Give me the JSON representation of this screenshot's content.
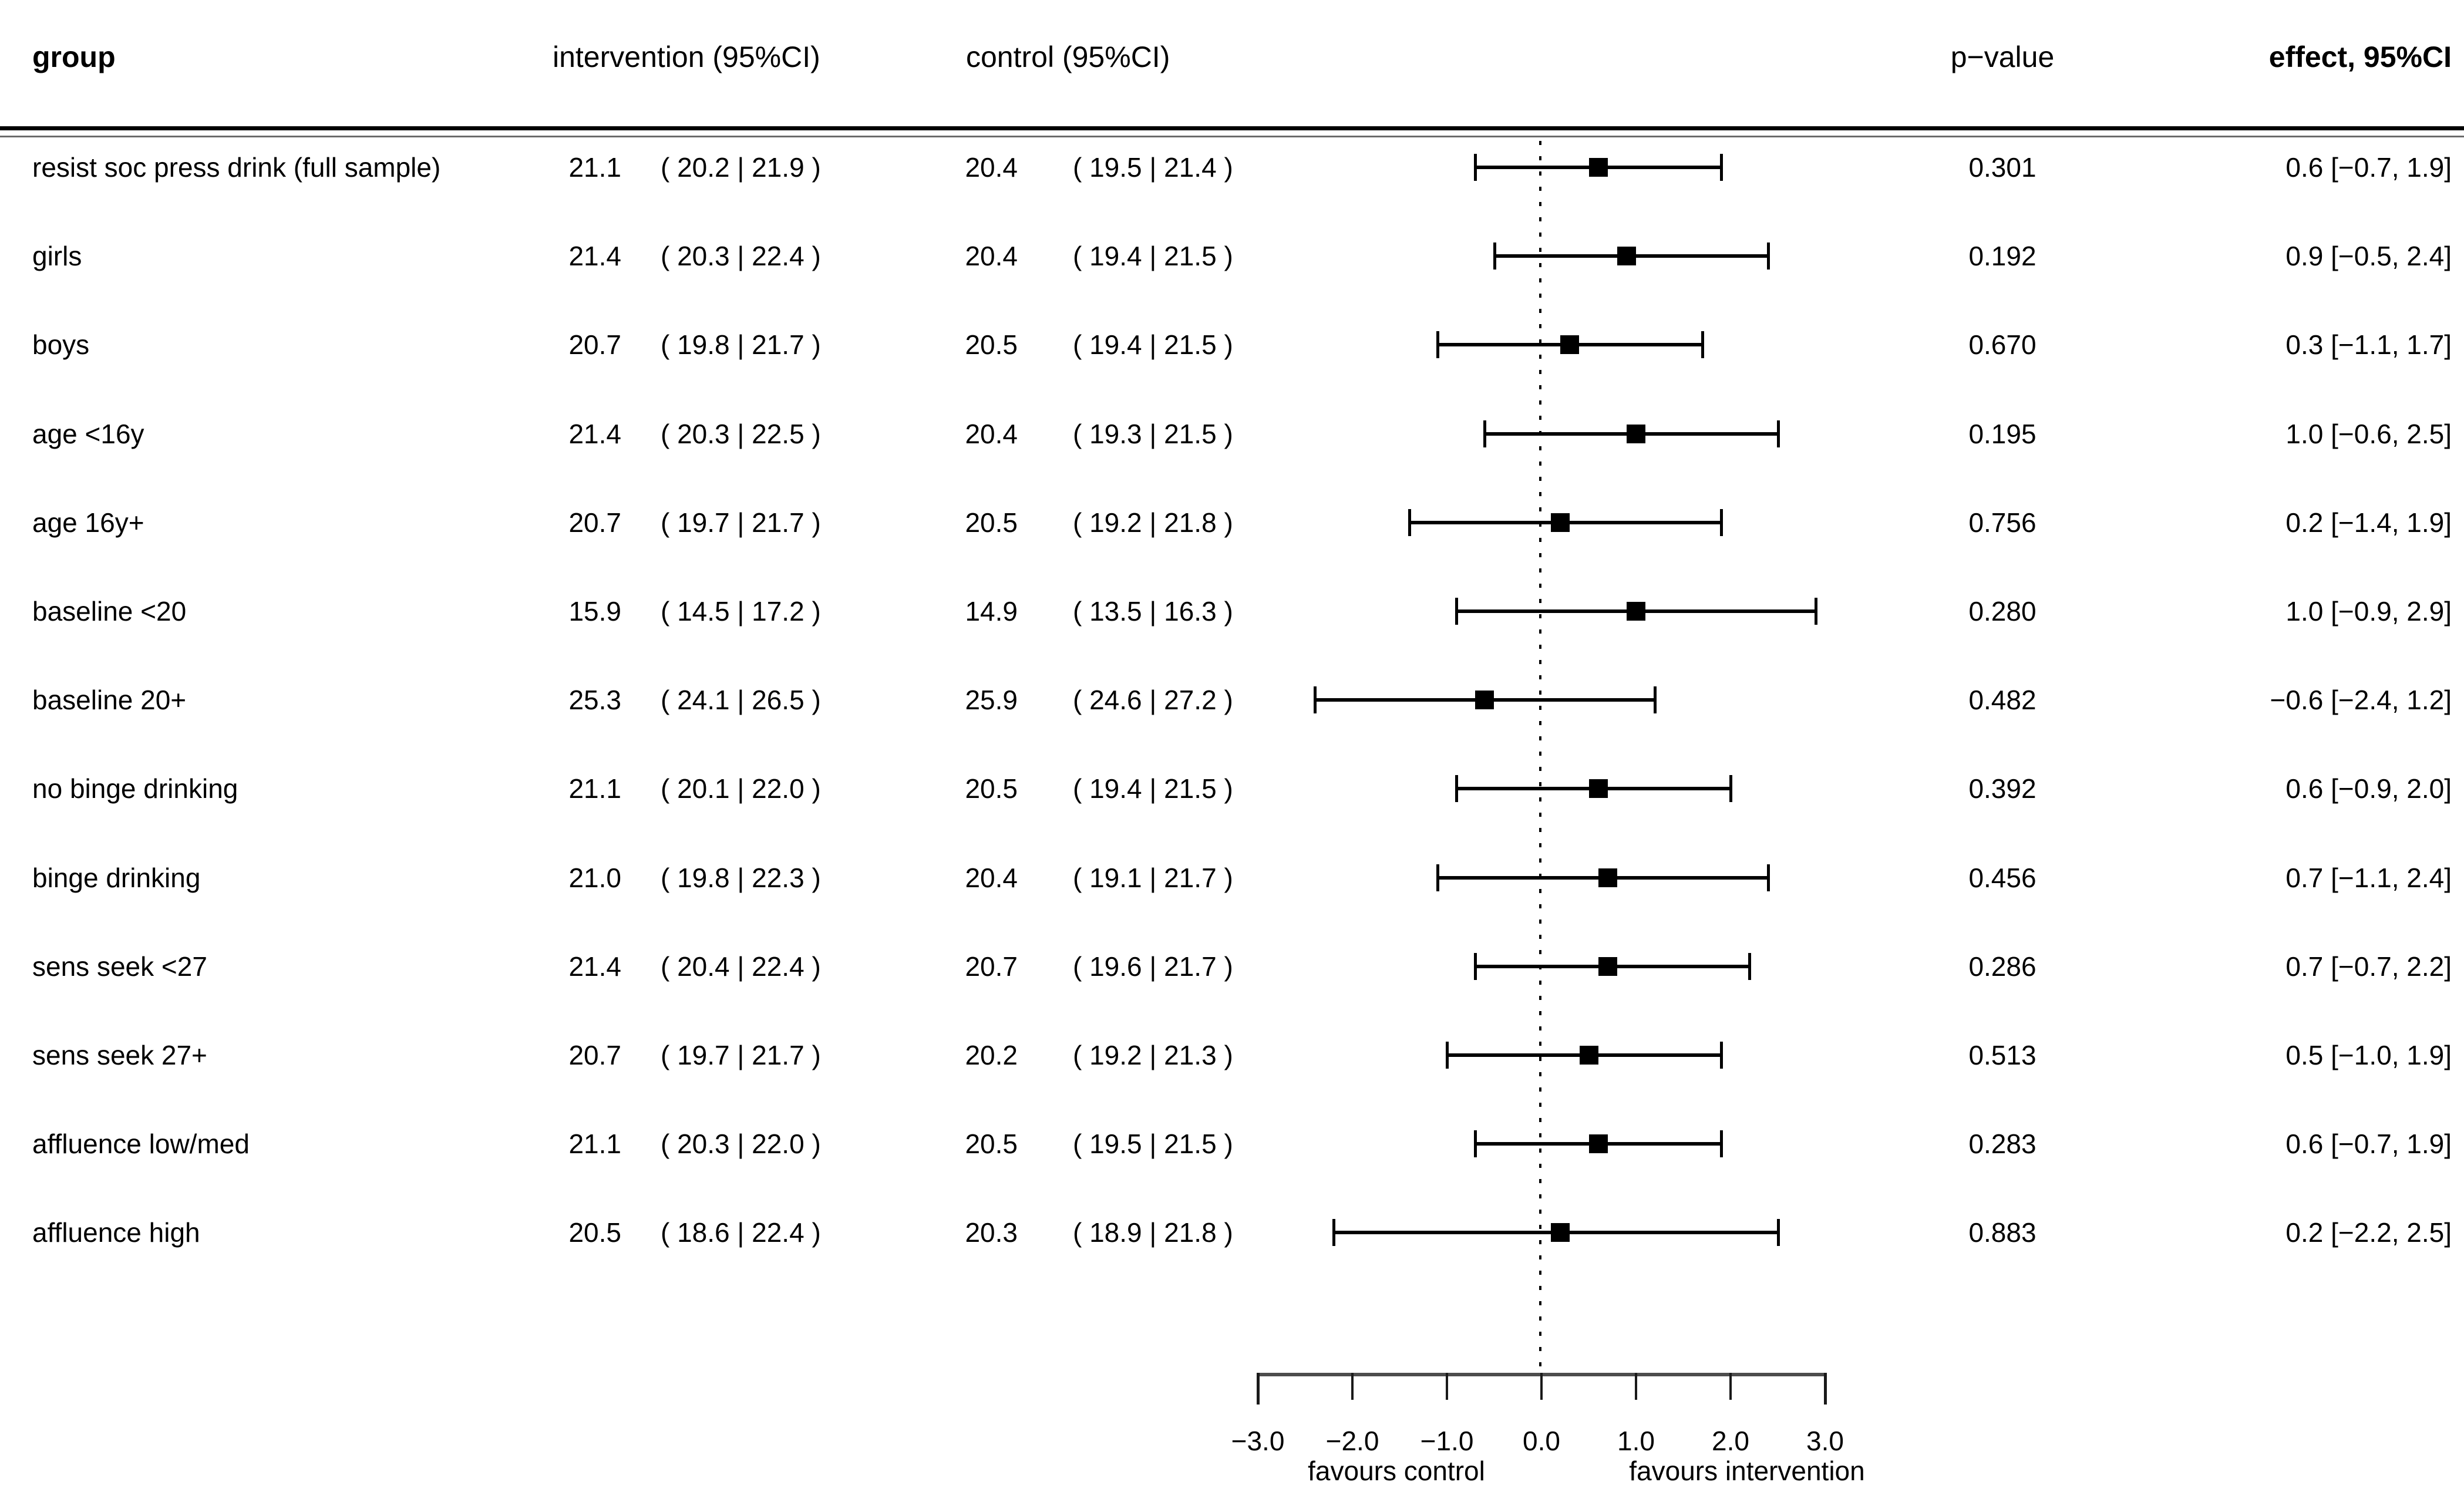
{
  "headers": {
    "group": "group",
    "intervention": "intervention (95%CI)",
    "control": "control (95%CI)",
    "p_value": "p−value",
    "effect": "effect, 95%CI"
  },
  "axis": {
    "tick_labels": [
      "−3.0",
      "−2.0",
      "−1.0",
      "0.0",
      "1.0",
      "2.0",
      "3.0"
    ],
    "favours_left": "favours control",
    "favours_right": "favours intervention"
  },
  "table": {
    "rows": [
      {
        "group": "resist soc press drink (full sample)",
        "intervention_mean": "21.1",
        "intervention_ci": "( 20.2 | 21.9 )",
        "control_mean": "20.4",
        "control_ci": "( 19.5 | 21.4 )",
        "p_value": "0.301",
        "effect_label": "0.6 [−0.7, 1.9]"
      },
      {
        "group": "girls",
        "intervention_mean": "21.4",
        "intervention_ci": "( 20.3 | 22.4 )",
        "control_mean": "20.4",
        "control_ci": "( 19.4 | 21.5 )",
        "p_value": "0.192",
        "effect_label": "0.9 [−0.5, 2.4]"
      },
      {
        "group": "boys",
        "intervention_mean": "20.7",
        "intervention_ci": "( 19.8 | 21.7 )",
        "control_mean": "20.5",
        "control_ci": "( 19.4 | 21.5 )",
        "p_value": "0.670",
        "effect_label": "0.3 [−1.1, 1.7]"
      },
      {
        "group": "age <16y",
        "intervention_mean": "21.4",
        "intervention_ci": "( 20.3 | 22.5 )",
        "control_mean": "20.4",
        "control_ci": "( 19.3 | 21.5 )",
        "p_value": "0.195",
        "effect_label": "1.0 [−0.6, 2.5]"
      },
      {
        "group": "age 16y+",
        "intervention_mean": "20.7",
        "intervention_ci": "( 19.7 | 21.7 )",
        "control_mean": "20.5",
        "control_ci": "( 19.2 | 21.8 )",
        "p_value": "0.756",
        "effect_label": "0.2 [−1.4, 1.9]"
      },
      {
        "group": "baseline <20",
        "intervention_mean": "15.9",
        "intervention_ci": "( 14.5 | 17.2 )",
        "control_mean": "14.9",
        "control_ci": "( 13.5 | 16.3 )",
        "p_value": "0.280",
        "effect_label": "1.0 [−0.9, 2.9]"
      },
      {
        "group": "baseline 20+",
        "intervention_mean": "25.3",
        "intervention_ci": "( 24.1 | 26.5 )",
        "control_mean": "25.9",
        "control_ci": "( 24.6 | 27.2 )",
        "p_value": "0.482",
        "effect_label": "−0.6 [−2.4, 1.2]"
      },
      {
        "group": "no binge drinking",
        "intervention_mean": "21.1",
        "intervention_ci": "( 20.1 | 22.0 )",
        "control_mean": "20.5",
        "control_ci": "( 19.4 | 21.5 )",
        "p_value": "0.392",
        "effect_label": "0.6 [−0.9, 2.0]"
      },
      {
        "group": "binge drinking",
        "intervention_mean": "21.0",
        "intervention_ci": "( 19.8 | 22.3 )",
        "control_mean": "20.4",
        "control_ci": "( 19.1 | 21.7 )",
        "p_value": "0.456",
        "effect_label": "0.7 [−1.1, 2.4]"
      },
      {
        "group": "sens seek <27",
        "intervention_mean": "21.4",
        "intervention_ci": "( 20.4 | 22.4 )",
        "control_mean": "20.7",
        "control_ci": "( 19.6 | 21.7 )",
        "p_value": "0.286",
        "effect_label": "0.7 [−0.7, 2.2]"
      },
      {
        "group": "sens seek 27+",
        "intervention_mean": "20.7",
        "intervention_ci": "( 19.7 | 21.7 )",
        "control_mean": "20.2",
        "control_ci": "( 19.2 | 21.3 )",
        "p_value": "0.513",
        "effect_label": "0.5 [−1.0, 1.9]"
      },
      {
        "group": "affluence low/med",
        "intervention_mean": "21.1",
        "intervention_ci": "( 20.3 | 22.0 )",
        "control_mean": "20.5",
        "control_ci": "( 19.5 | 21.5 )",
        "p_value": "0.283",
        "effect_label": "0.6 [−0.7, 1.9]"
      },
      {
        "group": "affluence high",
        "intervention_mean": "20.5",
        "intervention_ci": "( 18.6 | 22.4 )",
        "control_mean": "20.3",
        "control_ci": "( 18.9 | 21.8 )",
        "p_value": "0.883",
        "effect_label": "0.2 [−2.2, 2.5]"
      }
    ]
  },
  "chart_data": {
    "type": "scatter",
    "subtype": "forest-plot",
    "title": "",
    "xlabel": "",
    "ylabel": "",
    "xlim": [
      -3.3,
      3.3
    ],
    "x_ticks": [
      -3.0,
      -2.0,
      -1.0,
      0.0,
      1.0,
      2.0,
      3.0
    ],
    "reference_line_x": 0.0,
    "grid": false,
    "legend": false,
    "x_axis_annotations": {
      "left_of_zero": "favours control",
      "right_of_zero": "favours intervention"
    },
    "series": [
      {
        "name": "effect, 95%CI",
        "marker": "filled-square",
        "points": [
          {
            "group": "resist soc press drink (full sample)",
            "effect": 0.6,
            "ci_low": -0.7,
            "ci_high": 1.9,
            "intervention_mean": 21.1,
            "intervention_ci": [
              20.2,
              21.9
            ],
            "control_mean": 20.4,
            "control_ci": [
              19.5,
              21.4
            ],
            "p_value": 0.301
          },
          {
            "group": "girls",
            "effect": 0.9,
            "ci_low": -0.5,
            "ci_high": 2.4,
            "intervention_mean": 21.4,
            "intervention_ci": [
              20.3,
              22.4
            ],
            "control_mean": 20.4,
            "control_ci": [
              19.4,
              21.5
            ],
            "p_value": 0.192
          },
          {
            "group": "boys",
            "effect": 0.3,
            "ci_low": -1.1,
            "ci_high": 1.7,
            "intervention_mean": 20.7,
            "intervention_ci": [
              19.8,
              21.7
            ],
            "control_mean": 20.5,
            "control_ci": [
              19.4,
              21.5
            ],
            "p_value": 0.67
          },
          {
            "group": "age <16y",
            "effect": 1.0,
            "ci_low": -0.6,
            "ci_high": 2.5,
            "intervention_mean": 21.4,
            "intervention_ci": [
              20.3,
              22.5
            ],
            "control_mean": 20.4,
            "control_ci": [
              19.3,
              21.5
            ],
            "p_value": 0.195
          },
          {
            "group": "age 16y+",
            "effect": 0.2,
            "ci_low": -1.4,
            "ci_high": 1.9,
            "intervention_mean": 20.7,
            "intervention_ci": [
              19.7,
              21.7
            ],
            "control_mean": 20.5,
            "control_ci": [
              19.2,
              21.8
            ],
            "p_value": 0.756
          },
          {
            "group": "baseline <20",
            "effect": 1.0,
            "ci_low": -0.9,
            "ci_high": 2.9,
            "intervention_mean": 15.9,
            "intervention_ci": [
              14.5,
              17.2
            ],
            "control_mean": 14.9,
            "control_ci": [
              13.5,
              16.3
            ],
            "p_value": 0.28
          },
          {
            "group": "baseline 20+",
            "effect": -0.6,
            "ci_low": -2.4,
            "ci_high": 1.2,
            "intervention_mean": 25.3,
            "intervention_ci": [
              24.1,
              26.5
            ],
            "control_mean": 25.9,
            "control_ci": [
              24.6,
              27.2
            ],
            "p_value": 0.482
          },
          {
            "group": "no binge drinking",
            "effect": 0.6,
            "ci_low": -0.9,
            "ci_high": 2.0,
            "intervention_mean": 21.1,
            "intervention_ci": [
              20.1,
              22.0
            ],
            "control_mean": 20.5,
            "control_ci": [
              19.4,
              21.5
            ],
            "p_value": 0.392
          },
          {
            "group": "binge drinking",
            "effect": 0.7,
            "ci_low": -1.1,
            "ci_high": 2.4,
            "intervention_mean": 21.0,
            "intervention_ci": [
              19.8,
              22.3
            ],
            "control_mean": 20.4,
            "control_ci": [
              19.1,
              21.7
            ],
            "p_value": 0.456
          },
          {
            "group": "sens seek <27",
            "effect": 0.7,
            "ci_low": -0.7,
            "ci_high": 2.2,
            "intervention_mean": 21.4,
            "intervention_ci": [
              20.4,
              22.4
            ],
            "control_mean": 20.7,
            "control_ci": [
              19.6,
              21.7
            ],
            "p_value": 0.286
          },
          {
            "group": "sens seek 27+",
            "effect": 0.5,
            "ci_low": -1.0,
            "ci_high": 1.9,
            "intervention_mean": 20.7,
            "intervention_ci": [
              19.7,
              21.7
            ],
            "control_mean": 20.2,
            "control_ci": [
              19.2,
              21.3
            ],
            "p_value": 0.513
          },
          {
            "group": "affluence low/med",
            "effect": 0.6,
            "ci_low": -0.7,
            "ci_high": 1.9,
            "intervention_mean": 21.1,
            "intervention_ci": [
              20.3,
              22.0
            ],
            "control_mean": 20.5,
            "control_ci": [
              19.5,
              21.5
            ],
            "p_value": 0.283
          },
          {
            "group": "affluence high",
            "effect": 0.2,
            "ci_low": -2.2,
            "ci_high": 2.5,
            "intervention_mean": 20.5,
            "intervention_ci": [
              18.6,
              22.4
            ],
            "control_mean": 20.3,
            "control_ci": [
              18.9,
              21.8
            ],
            "p_value": 0.883
          }
        ]
      }
    ]
  }
}
